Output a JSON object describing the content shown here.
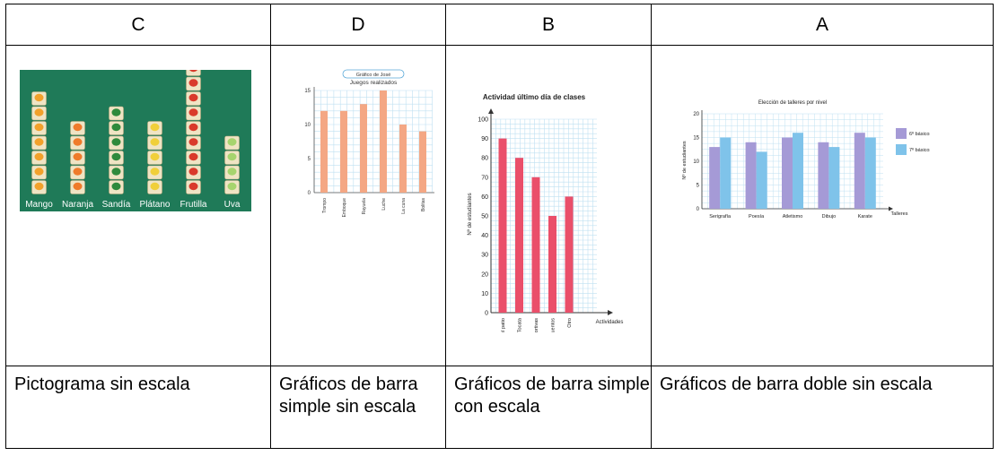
{
  "table": {
    "columns": [
      {
        "letter": "C",
        "caption": "Pictograma sin escala"
      },
      {
        "letter": "D",
        "caption": "Gráficos de barra simple sin escala"
      },
      {
        "letter": "B",
        "caption": "Gráficos de barra simple con escala"
      },
      {
        "letter": "A",
        "caption": "Gráficos de barra doble sin escala"
      }
    ]
  },
  "chart_data": [
    {
      "type": "pictogram",
      "categories": [
        "Mango",
        "Naranja",
        "Sandía",
        "Plátano",
        "Frutilla",
        "Uva"
      ],
      "values": [
        7,
        5,
        6,
        5,
        10,
        4
      ],
      "colors": {
        "background": "#1f7a58",
        "tile": "#efe4c4",
        "fruits": [
          "#f2a12b",
          "#ef7b2a",
          "#2f8a3c",
          "#f0cf3a",
          "#d93a2b",
          "#a6d46e"
        ]
      }
    },
    {
      "type": "bar",
      "title": "Juegos realizados",
      "subtitle": "Gráfico de José",
      "categories": [
        "Trompo",
        "Emboque",
        "Rayuela",
        "Luche",
        "La cuna",
        "Bolitas"
      ],
      "values": [
        12,
        12,
        13,
        15,
        10,
        9
      ],
      "yticks": [
        0,
        5,
        10,
        15
      ],
      "ylim": [
        0,
        15
      ],
      "color": "#f4a784"
    },
    {
      "type": "bar",
      "title": "Actividad último día de clases",
      "xlabel": "Actividades",
      "ylabel": "Nº de estudiantes",
      "categories": [
        "Juegos en el patio",
        "Tocata",
        "Competencias deportivas",
        "Cuentacuentos",
        "Otro"
      ],
      "values": [
        90,
        80,
        70,
        50,
        60
      ],
      "yticks": [
        0,
        10,
        20,
        30,
        40,
        50,
        60,
        70,
        80,
        90,
        100
      ],
      "ylim": [
        0,
        100
      ],
      "color": "#ea4f6a"
    },
    {
      "type": "bar",
      "title": "Elección de talleres por nivel",
      "xlabel": "Talleres",
      "ylabel": "Nº de estudiantes",
      "categories": [
        "Serigrafía",
        "Poesía",
        "Atletismo",
        "Dibujo",
        "Karate"
      ],
      "series": [
        {
          "name": "6º básicos",
          "values": [
            13,
            14,
            15,
            14,
            16
          ],
          "color": "#a59ad6"
        },
        {
          "name": "7º básicos",
          "values": [
            15,
            12,
            16,
            13,
            15
          ],
          "color": "#7fc3ea"
        }
      ],
      "yticks": [
        0,
        5,
        10,
        15,
        20
      ],
      "ylim": [
        0,
        20
      ],
      "legend": "right"
    }
  ]
}
